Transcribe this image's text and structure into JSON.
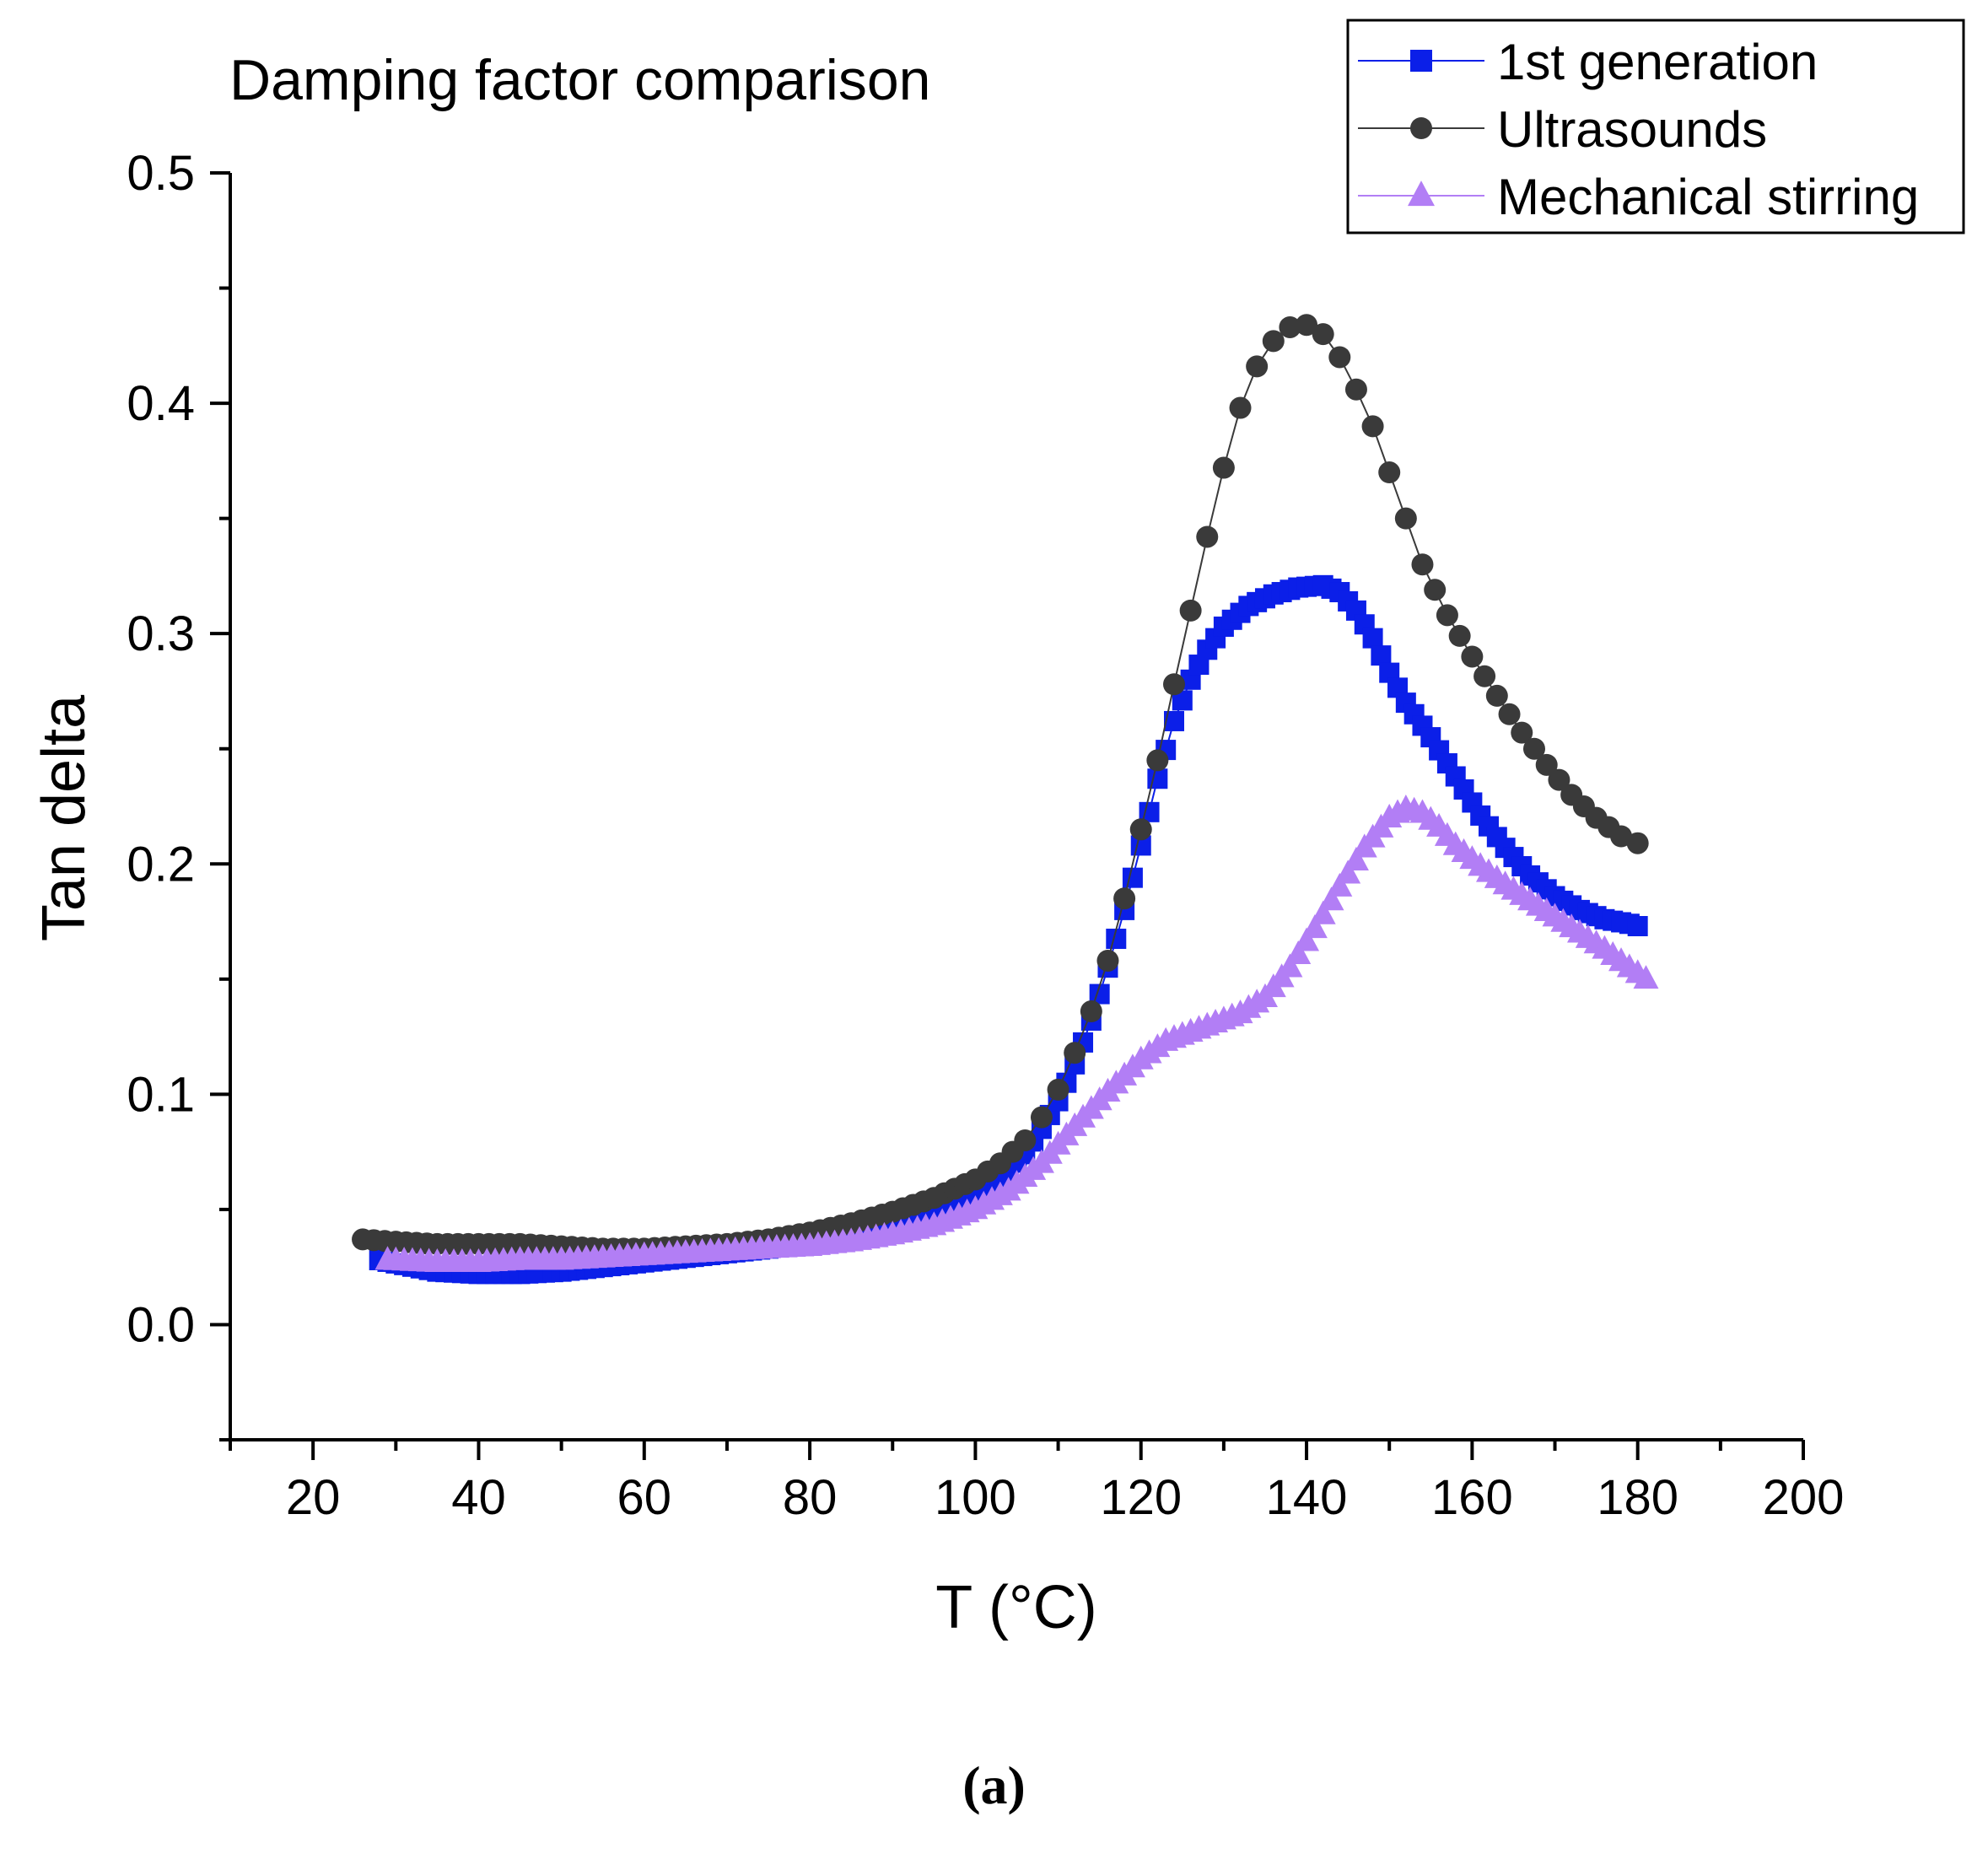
{
  "chart_data": {
    "type": "scatter",
    "title": "Damping factor comparison",
    "xlabel": "T (°C)",
    "ylabel": "Tan delta",
    "xlim": [
      10,
      200
    ],
    "ylim": [
      -0.05,
      0.5
    ],
    "xticks": [
      20,
      40,
      60,
      80,
      100,
      120,
      140,
      160,
      180,
      200
    ],
    "yticks": [
      0.0,
      0.1,
      0.2,
      0.3,
      0.4,
      0.5
    ],
    "ytick_labels": [
      "0.0",
      "0.1",
      "0.2",
      "0.3",
      "0.4",
      "0.5"
    ],
    "legend_position": "top-right",
    "series": [
      {
        "name": "1st generation",
        "color": "#0b1fe8",
        "marker": "square",
        "points": [
          [
            28,
            0.028
          ],
          [
            35,
            0.023
          ],
          [
            40,
            0.022
          ],
          [
            45,
            0.022
          ],
          [
            50,
            0.023
          ],
          [
            55,
            0.025
          ],
          [
            60,
            0.027
          ],
          [
            65,
            0.029
          ],
          [
            70,
            0.031
          ],
          [
            75,
            0.033
          ],
          [
            80,
            0.036
          ],
          [
            85,
            0.039
          ],
          [
            90,
            0.043
          ],
          [
            95,
            0.048
          ],
          [
            100,
            0.056
          ],
          [
            103,
            0.063
          ],
          [
            106,
            0.074
          ],
          [
            108,
            0.085
          ],
          [
            110,
            0.097
          ],
          [
            112,
            0.113
          ],
          [
            114,
            0.132
          ],
          [
            116,
            0.155
          ],
          [
            118,
            0.18
          ],
          [
            120,
            0.208
          ],
          [
            122,
            0.237
          ],
          [
            124,
            0.262
          ],
          [
            126,
            0.28
          ],
          [
            128,
            0.293
          ],
          [
            130,
            0.303
          ],
          [
            133,
            0.312
          ],
          [
            136,
            0.317
          ],
          [
            139,
            0.32
          ],
          [
            142,
            0.321
          ],
          [
            144,
            0.318
          ],
          [
            146,
            0.31
          ],
          [
            148,
            0.298
          ],
          [
            150,
            0.283
          ],
          [
            152,
            0.27
          ],
          [
            155,
            0.255
          ],
          [
            158,
            0.238
          ],
          [
            161,
            0.221
          ],
          [
            164,
            0.207
          ],
          [
            167,
            0.195
          ],
          [
            170,
            0.186
          ],
          [
            173,
            0.18
          ],
          [
            176,
            0.176
          ],
          [
            179,
            0.174
          ],
          [
            180,
            0.173
          ]
        ]
      },
      {
        "name": "Ultrasounds",
        "color": "#3a3a3a",
        "marker": "circle",
        "points": [
          [
            26,
            0.037
          ],
          [
            30,
            0.036
          ],
          [
            35,
            0.035
          ],
          [
            40,
            0.035
          ],
          [
            45,
            0.035
          ],
          [
            50,
            0.034
          ],
          [
            55,
            0.033
          ],
          [
            60,
            0.033
          ],
          [
            65,
            0.034
          ],
          [
            70,
            0.035
          ],
          [
            75,
            0.037
          ],
          [
            80,
            0.04
          ],
          [
            85,
            0.044
          ],
          [
            90,
            0.049
          ],
          [
            95,
            0.055
          ],
          [
            100,
            0.063
          ],
          [
            103,
            0.07
          ],
          [
            106,
            0.08
          ],
          [
            108,
            0.09
          ],
          [
            110,
            0.102
          ],
          [
            112,
            0.118
          ],
          [
            114,
            0.136
          ],
          [
            116,
            0.158
          ],
          [
            118,
            0.185
          ],
          [
            120,
            0.215
          ],
          [
            122,
            0.245
          ],
          [
            124,
            0.278
          ],
          [
            126,
            0.31
          ],
          [
            128,
            0.342
          ],
          [
            130,
            0.372
          ],
          [
            132,
            0.398
          ],
          [
            134,
            0.416
          ],
          [
            136,
            0.427
          ],
          [
            138,
            0.433
          ],
          [
            140,
            0.434
          ],
          [
            142,
            0.43
          ],
          [
            144,
            0.42
          ],
          [
            146,
            0.406
          ],
          [
            148,
            0.39
          ],
          [
            150,
            0.37
          ],
          [
            152,
            0.35
          ],
          [
            154,
            0.33
          ],
          [
            157,
            0.308
          ],
          [
            160,
            0.29
          ],
          [
            163,
            0.273
          ],
          [
            166,
            0.257
          ],
          [
            169,
            0.243
          ],
          [
            172,
            0.23
          ],
          [
            175,
            0.22
          ],
          [
            178,
            0.212
          ],
          [
            180,
            0.209
          ]
        ]
      },
      {
        "name": "Mechanical stirring",
        "color": "#b27ef5",
        "marker": "triangle",
        "points": [
          [
            29,
            0.028
          ],
          [
            35,
            0.027
          ],
          [
            40,
            0.027
          ],
          [
            45,
            0.028
          ],
          [
            50,
            0.028
          ],
          [
            55,
            0.029
          ],
          [
            60,
            0.03
          ],
          [
            65,
            0.031
          ],
          [
            70,
            0.032
          ],
          [
            75,
            0.033
          ],
          [
            80,
            0.034
          ],
          [
            85,
            0.036
          ],
          [
            90,
            0.039
          ],
          [
            95,
            0.043
          ],
          [
            100,
            0.05
          ],
          [
            104,
            0.058
          ],
          [
            108,
            0.07
          ],
          [
            112,
            0.086
          ],
          [
            116,
            0.101
          ],
          [
            120,
            0.115
          ],
          [
            123,
            0.123
          ],
          [
            126,
            0.127
          ],
          [
            129,
            0.131
          ],
          [
            132,
            0.135
          ],
          [
            135,
            0.142
          ],
          [
            138,
            0.155
          ],
          [
            141,
            0.172
          ],
          [
            144,
            0.19
          ],
          [
            147,
            0.207
          ],
          [
            150,
            0.22
          ],
          [
            152,
            0.224
          ],
          [
            154,
            0.222
          ],
          [
            156,
            0.216
          ],
          [
            158,
            0.208
          ],
          [
            161,
            0.199
          ],
          [
            164,
            0.191
          ],
          [
            167,
            0.184
          ],
          [
            170,
            0.177
          ],
          [
            173,
            0.17
          ],
          [
            176,
            0.163
          ],
          [
            179,
            0.155
          ],
          [
            181,
            0.15
          ]
        ]
      }
    ]
  },
  "caption": "(a)"
}
